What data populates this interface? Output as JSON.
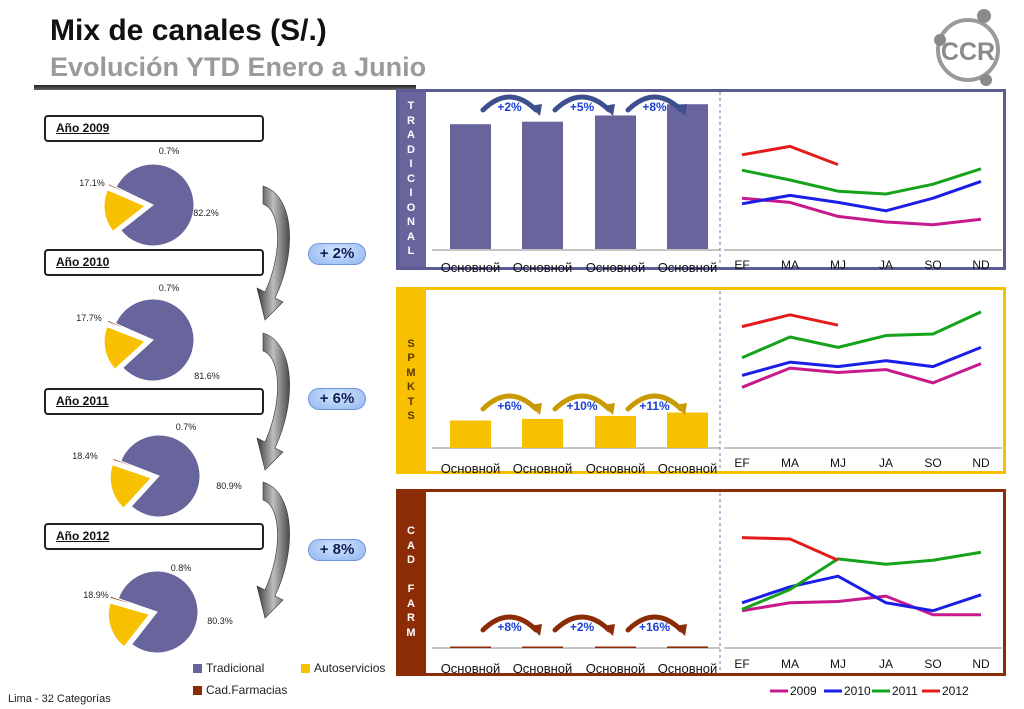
{
  "header": {
    "title": "Mix de canales (S/.)",
    "subtitle": "Evolución YTD Enero a Junio",
    "footnote": "Lima - 32 Categorías"
  },
  "logo": {
    "text": "CCR"
  },
  "colors": {
    "tradicional": "#67659c",
    "autoservicios": "#f7c000",
    "cadfarmacias": "#8b2c07",
    "y2009": "#c8198c",
    "y2010": "#1a1ee6",
    "y2011": "#16a31c",
    "y2012": "#e51b1b"
  },
  "pies": [
    {
      "label": "Año 2009",
      "border": "#e0202a",
      "values": [
        82.2,
        17.1,
        0.7
      ],
      "labels": [
        "82.2%",
        "17.1%",
        "0.7%"
      ]
    },
    {
      "label": "Año 2010",
      "border": "#1f8f2a",
      "values": [
        81.6,
        17.7,
        0.7
      ],
      "labels": [
        "81.6%",
        "17.7%",
        "0.7%"
      ]
    },
    {
      "label": "Año 2011",
      "border": "#2f2f9c",
      "values": [
        80.9,
        18.4,
        0.7
      ],
      "labels": [
        "80.9%",
        "18.4%",
        "0.7%"
      ]
    },
    {
      "label": "Año 2012",
      "border": "#f07a23",
      "values": [
        80.3,
        18.9,
        0.8
      ],
      "labels": [
        "80.3%",
        "18.9%",
        "0.8%"
      ]
    }
  ],
  "pie_legend": [
    "Tradicional",
    "Autoservicios",
    "Cad.Farmacias"
  ],
  "growth_pills": [
    "+ 2%",
    "+ 6%",
    "+ 8%"
  ],
  "chart_data": [
    {
      "type": "bar",
      "channel": "TRADICIONAL",
      "side_label": [
        "T",
        "R",
        "A",
        "D",
        "I",
        "C",
        "I",
        "O",
        "N",
        "A",
        "L"
      ],
      "categories": [
        "Основной",
        "Основной",
        "Основной",
        "Основной"
      ],
      "values": [
        100,
        102,
        107,
        116
      ],
      "ylim": [
        0,
        125
      ],
      "growth_labels": [
        "+2%",
        "+5%",
        "+8%"
      ],
      "border": "#5c5c94"
    },
    {
      "type": "bar",
      "channel": "SPMKTS",
      "side_label": [
        "S",
        "P",
        "M",
        "K",
        "T",
        "S"
      ],
      "categories": [
        "Основной",
        "Основной",
        "Основной",
        "Основной"
      ],
      "values": [
        22,
        23.3,
        25.6,
        28.4
      ],
      "ylim": [
        0,
        125
      ],
      "growth_labels": [
        "+6%",
        "+10%",
        "+11%"
      ],
      "border": "#f7c000"
    },
    {
      "type": "bar",
      "channel": "CAD FARM",
      "side_label": [
        "C",
        "A",
        "D",
        "",
        "F",
        "A",
        "R",
        "M"
      ],
      "categories": [
        "Основной",
        "Основной",
        "Основной",
        "Основной"
      ],
      "values": [
        1,
        1.08,
        1.1,
        1.28
      ],
      "ylim": [
        0,
        125
      ],
      "growth_labels": [
        "+8%",
        "+2%",
        "+16%"
      ],
      "border": "#8b2c07"
    },
    {
      "type": "line",
      "channel": "TRADICIONAL",
      "x": [
        "EF",
        "MA",
        "MJ",
        "JA",
        "SO",
        "ND"
      ],
      "ylim": [
        0,
        100
      ],
      "series": [
        {
          "name": "2009",
          "values": [
            37,
            34,
            24,
            20,
            18,
            22
          ]
        },
        {
          "name": "2010",
          "values": [
            33,
            39,
            34,
            28,
            37,
            49
          ]
        },
        {
          "name": "2011",
          "values": [
            57,
            50,
            42,
            40,
            47,
            58
          ]
        },
        {
          "name": "2012",
          "values": [
            68,
            74,
            61,
            null,
            null,
            null
          ]
        }
      ]
    },
    {
      "type": "line",
      "channel": "SPMKTS",
      "x": [
        "EF",
        "MA",
        "MJ",
        "JA",
        "SO",
        "ND"
      ],
      "ylim": [
        0,
        100
      ],
      "series": [
        {
          "name": "2009",
          "values": [
            41,
            54,
            51,
            53,
            44,
            57
          ]
        },
        {
          "name": "2010",
          "values": [
            49,
            58,
            55,
            59,
            55,
            68
          ]
        },
        {
          "name": "2011",
          "values": [
            61,
            75,
            68,
            76,
            77,
            92
          ]
        },
        {
          "name": "2012",
          "values": [
            82,
            90,
            83,
            null,
            null,
            null
          ]
        }
      ]
    },
    {
      "type": "line",
      "channel": "CAD FARM",
      "x": [
        "EF",
        "MA",
        "MJ",
        "JA",
        "SO",
        "ND"
      ],
      "ylim": [
        0,
        100
      ],
      "series": [
        {
          "name": "2009",
          "values": [
            28,
            34,
            35,
            39,
            25,
            25
          ]
        },
        {
          "name": "2010",
          "values": [
            34,
            46,
            54,
            34,
            28,
            40
          ]
        },
        {
          "name": "2011",
          "values": [
            29,
            44,
            67,
            63,
            66,
            72
          ]
        },
        {
          "name": "2012",
          "values": [
            83,
            82,
            66,
            null,
            null,
            null
          ]
        }
      ]
    }
  ],
  "line_legend": [
    "2009",
    "2010",
    "2011",
    "2012"
  ]
}
